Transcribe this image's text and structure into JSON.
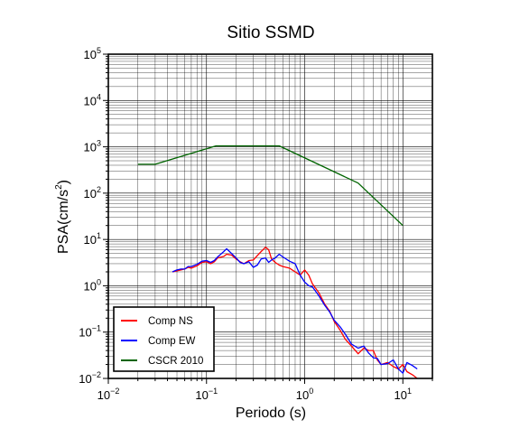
{
  "chart_data": {
    "type": "line",
    "title": "Sitio SSMD",
    "xlabel": "Periodo (s)",
    "ylabel_main": "PSA(cm/s",
    "ylabel_sup": "2",
    "ylabel_tail": ")",
    "xscale": "log",
    "yscale": "log",
    "xlim": [
      0.01,
      20
    ],
    "ylim": [
      0.01,
      100000
    ],
    "grid": true,
    "legend_position": "bottom-left",
    "x_ticks": [
      {
        "value": 0.01,
        "base": "10",
        "exp": "−2"
      },
      {
        "value": 0.1,
        "base": "10",
        "exp": "−1"
      },
      {
        "value": 1,
        "base": "10",
        "exp": "0"
      },
      {
        "value": 10,
        "base": "10",
        "exp": "1"
      }
    ],
    "y_ticks": [
      {
        "value": 0.01,
        "base": "10",
        "exp": "−2"
      },
      {
        "value": 0.1,
        "base": "10",
        "exp": "−1"
      },
      {
        "value": 1,
        "base": "10",
        "exp": "0"
      },
      {
        "value": 10,
        "base": "10",
        "exp": "1"
      },
      {
        "value": 100,
        "base": "10",
        "exp": "2"
      },
      {
        "value": 1000,
        "base": "10",
        "exp": "3"
      },
      {
        "value": 10000,
        "base": "10",
        "exp": "4"
      },
      {
        "value": 100000,
        "base": "10",
        "exp": "5"
      }
    ],
    "series": [
      {
        "name": "Comp NS",
        "color": "#ff0000",
        "x": [
          0.045,
          0.05,
          0.055,
          0.06,
          0.065,
          0.07,
          0.08,
          0.09,
          0.1,
          0.11,
          0.12,
          0.13,
          0.15,
          0.16,
          0.18,
          0.2,
          0.22,
          0.24,
          0.27,
          0.3,
          0.33,
          0.36,
          0.4,
          0.43,
          0.46,
          0.5,
          0.55,
          0.6,
          0.7,
          0.8,
          0.9,
          1.0,
          1.1,
          1.2,
          1.4,
          1.6,
          1.8,
          2.0,
          2.3,
          2.6,
          3.0,
          3.5,
          4.0,
          4.5,
          5.0,
          5.5,
          6.0,
          7.0,
          8.0,
          9.0,
          10.0,
          11.0,
          12.5,
          14.0
        ],
        "y": [
          2.0,
          2.1,
          2.2,
          2.3,
          2.5,
          2.4,
          2.7,
          3.2,
          3.3,
          3.0,
          3.3,
          4.0,
          4.3,
          4.8,
          4.6,
          3.8,
          3.3,
          3.0,
          3.5,
          3.6,
          4.5,
          5.5,
          6.8,
          6.0,
          3.8,
          3.2,
          2.8,
          2.6,
          2.4,
          2.0,
          1.7,
          2.2,
          1.7,
          1.1,
          0.7,
          0.4,
          0.28,
          0.17,
          0.11,
          0.07,
          0.05,
          0.034,
          0.045,
          0.04,
          0.04,
          0.025,
          0.02,
          0.022,
          0.018,
          0.016,
          0.02,
          0.014,
          0.012,
          0.01
        ]
      },
      {
        "name": "Comp EW",
        "color": "#0000ff",
        "x": [
          0.045,
          0.05,
          0.055,
          0.06,
          0.065,
          0.07,
          0.08,
          0.09,
          0.1,
          0.11,
          0.12,
          0.13,
          0.15,
          0.16,
          0.18,
          0.2,
          0.22,
          0.24,
          0.27,
          0.3,
          0.33,
          0.36,
          0.4,
          0.43,
          0.46,
          0.5,
          0.55,
          0.6,
          0.7,
          0.8,
          0.9,
          1.0,
          1.1,
          1.2,
          1.4,
          1.6,
          1.8,
          2.0,
          2.3,
          2.6,
          3.0,
          3.5,
          4.0,
          4.5,
          5.0,
          5.5,
          6.0,
          7.0,
          8.0,
          9.0,
          10.0,
          11.0,
          12.5,
          14.0
        ],
        "y": [
          2.0,
          2.2,
          2.3,
          2.3,
          2.6,
          2.6,
          2.9,
          3.4,
          3.5,
          3.2,
          3.5,
          4.2,
          5.5,
          6.3,
          5.0,
          4.0,
          3.2,
          3.0,
          3.3,
          2.5,
          2.8,
          3.8,
          4.0,
          3.2,
          3.6,
          4.0,
          4.8,
          4.2,
          3.4,
          3.0,
          1.7,
          1.2,
          1.0,
          0.95,
          0.6,
          0.38,
          0.27,
          0.18,
          0.13,
          0.09,
          0.055,
          0.045,
          0.05,
          0.035,
          0.028,
          0.027,
          0.02,
          0.021,
          0.025,
          0.016,
          0.013,
          0.022,
          0.019,
          0.016
        ]
      },
      {
        "name": "CSCR 2010",
        "color": "#006400",
        "x": [
          0.02,
          0.03,
          0.125,
          0.55,
          3.5,
          10.0
        ],
        "y": [
          420,
          420,
          1050,
          1050,
          165,
          20
        ]
      }
    ]
  }
}
